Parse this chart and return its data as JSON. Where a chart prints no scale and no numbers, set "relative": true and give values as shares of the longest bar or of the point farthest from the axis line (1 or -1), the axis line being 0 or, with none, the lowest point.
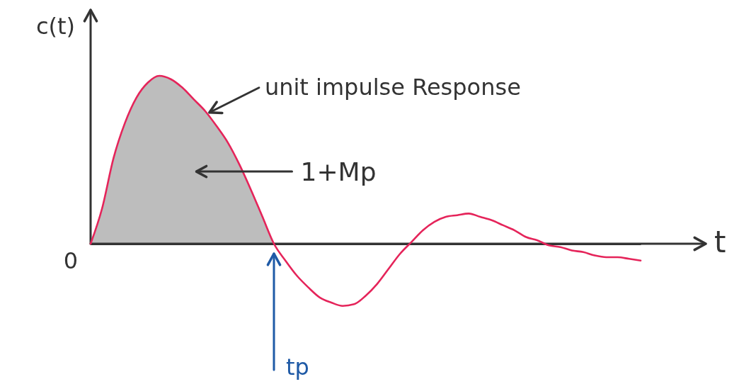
{
  "chart_data": {
    "type": "line",
    "relative": true,
    "xlabel": "t",
    "ylabel": "c(t)",
    "categories": [
      null,
      null,
      null,
      null,
      null,
      null,
      null,
      null,
      null,
      null,
      null,
      null,
      null,
      null,
      null,
      null,
      null,
      null,
      null,
      null,
      null,
      null,
      null,
      null,
      null,
      null,
      null,
      null,
      null,
      null,
      null,
      null,
      null,
      null,
      null,
      null,
      null,
      null,
      null,
      null,
      null,
      null,
      null,
      null,
      null,
      null,
      null,
      null,
      null
    ],
    "series": [
      {
        "name": "1+Mp",
        "type": "area",
        "color": "#bdbdbd",
        "values": [
          0,
          0.21,
          0.51,
          0.72,
          0.87,
          0.96,
          1,
          0.98,
          0.93,
          0.86,
          0.79,
          0.7,
          0.6,
          0.47,
          0.32,
          0.16,
          0,
          null,
          null,
          null,
          null,
          null,
          null,
          null,
          null,
          null,
          null,
          null,
          null,
          null,
          null,
          null,
          null,
          null,
          null,
          null,
          null,
          null,
          null,
          null,
          null,
          null,
          null,
          null,
          null,
          null,
          null,
          null,
          null
        ]
      },
      {
        "name": "unit impulse Response",
        "color": "#e5245a",
        "values": [
          0,
          0.21,
          0.51,
          0.72,
          0.87,
          0.96,
          1,
          0.98,
          0.93,
          0.86,
          0.79,
          0.7,
          0.6,
          0.47,
          0.32,
          0.16,
          0,
          -0.1,
          -0.19,
          -0.26,
          -0.32,
          -0.35,
          -0.37,
          -0.36,
          -0.31,
          -0.24,
          -0.15,
          -0.06,
          0.01,
          0.08,
          0.13,
          0.16,
          0.17,
          0.18,
          0.16,
          0.14,
          0.11,
          0.08,
          0.04,
          0.02,
          -0.01,
          -0.02,
          -0.04,
          -0.05,
          -0.07,
          -0.08,
          -0.08,
          -0.09,
          -0.1
        ]
      }
    ],
    "annotations": [
      "0",
      "tp"
    ]
  }
}
